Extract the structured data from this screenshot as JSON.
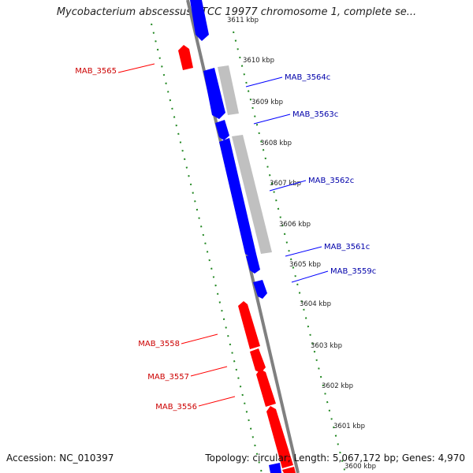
{
  "title": "Mycobacterium abscessus ATCC 19977 chromosome 1, complete se...",
  "footer": {
    "accession": "Accession: NC_010397",
    "summary": "Topology: circular; Length: 5,067,172 bp; Genes: 4,970"
  },
  "colors": {
    "forward_gene": "#ff0000",
    "reverse_gene": "#0000ff",
    "gene_body": "#c0c0c0",
    "backbone": "#808080",
    "gc_dots": "#228822"
  },
  "position_ticks": [
    "3611 kbp",
    "3610 kbp",
    "3609 kbp",
    "3608 kbp",
    "3607 kbp",
    "3606 kbp",
    "3605 kbp",
    "3604 kbp",
    "3603 kbp",
    "3602 kbp",
    "3601 kbp",
    "3600 kbp"
  ],
  "gene_labels": {
    "forward": [
      "MAB_3565",
      "MAB_3558",
      "MAB_3557",
      "MAB_3556"
    ],
    "reverse": [
      "MAB_3564c",
      "MAB_3563c",
      "MAB_3562c",
      "MAB_3561c",
      "MAB_3559c"
    ]
  }
}
